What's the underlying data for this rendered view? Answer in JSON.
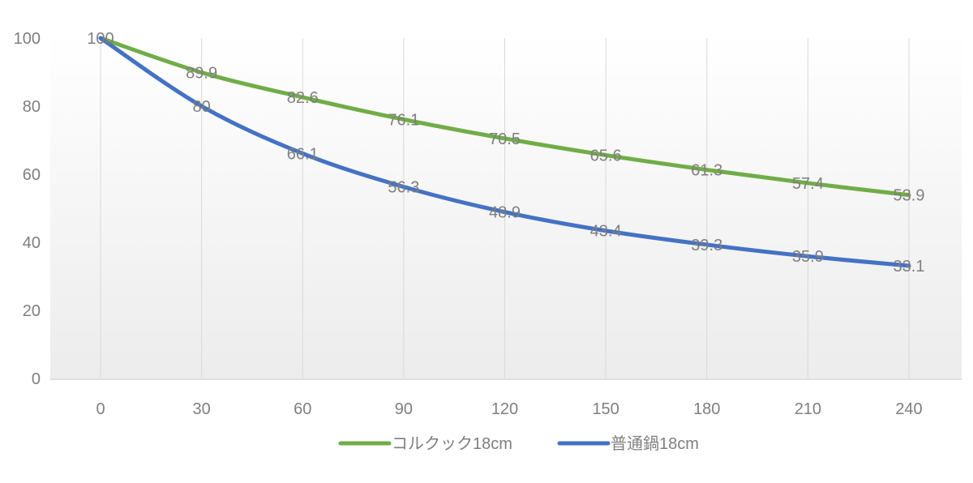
{
  "chart_data": {
    "type": "line",
    "title": "",
    "xlabel": "",
    "ylabel": "",
    "x": [
      0,
      30,
      60,
      90,
      120,
      150,
      180,
      210,
      240
    ],
    "xticks": [
      "0",
      "30",
      "60",
      "90",
      "120",
      "150",
      "180",
      "210",
      "240"
    ],
    "yticks": [
      "0",
      "20",
      "40",
      "60",
      "80",
      "100"
    ],
    "ylim": [
      0,
      100
    ],
    "xlim": [
      0,
      240
    ],
    "grid": "vertical",
    "smooth": true,
    "legend": "bottom",
    "series": [
      {
        "name": "コルクック18cm",
        "color": "#70AD47",
        "values": [
          100,
          89.9,
          82.6,
          76.1,
          70.5,
          65.6,
          61.3,
          57.4,
          53.9
        ],
        "labels": [
          "100",
          "89.9",
          "82.6",
          "76.1",
          "70.5",
          "65.6",
          "61.3",
          "57.4",
          "53.9"
        ]
      },
      {
        "name": "普通鍋18cm",
        "color": "#4472C4",
        "values": [
          100,
          80,
          66.1,
          56.3,
          48.9,
          43.4,
          39.3,
          35.9,
          33.1
        ],
        "labels": [
          "",
          "80",
          "66.1",
          "56.3",
          "48.9",
          "43.4",
          "39.3",
          "35.9",
          "33.1"
        ]
      }
    ]
  }
}
